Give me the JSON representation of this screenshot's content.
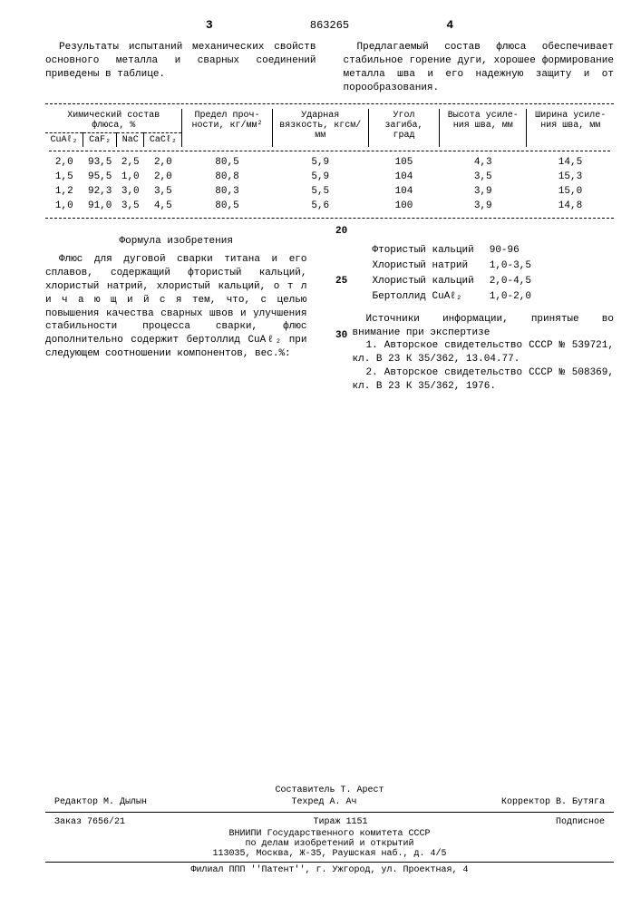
{
  "header": {
    "col_left": "3",
    "doc_number": "863265",
    "col_right": "4"
  },
  "intro_left": "Результаты испытаний механических свойств основного металла и сварных соединений приведены в таблице.",
  "intro_right": "Предлагаемый состав флюса обеспечивает стабильное горение дуги, хорошее формирование металла шва и его надежную защиту и от порообразования.",
  "table": {
    "group_header": "Химический состав флюса, %",
    "cols": [
      "CuAℓ₂",
      "CaF₂",
      "NaC",
      "CaCℓ₂"
    ],
    "other_headers": [
      "Предел проч- ности, кг/мм²",
      "Ударная вязкость, кгсм/мм",
      "Угол загиба, град",
      "Высота усиле- ния шва, мм",
      "Ширина усиле- ния шва, мм"
    ],
    "rows": [
      [
        "2,0",
        "93,5",
        "2,5",
        "2,0",
        "80,5",
        "5,9",
        "105",
        "4,3",
        "14,5"
      ],
      [
        "1,5",
        "95,5",
        "1,0",
        "2,0",
        "80,8",
        "5,9",
        "104",
        "3,5",
        "15,3"
      ],
      [
        "1,2",
        "92,3",
        "3,0",
        "3,5",
        "80,3",
        "5,5",
        "104",
        "3,9",
        "15,0"
      ],
      [
        "1,0",
        "91,0",
        "3,5",
        "4,5",
        "80,5",
        "5,6",
        "100",
        "3,9",
        "14,8"
      ]
    ]
  },
  "line_numbers": [
    "20",
    "25",
    "30"
  ],
  "formula_title": "Формула изобретения",
  "formula_body": "Флюс для дуговой сварки титана и его сплавов, содержащий фтористый кальций, хлористый натрий, хлористый кальций, о т л и ч а ю щ и й с я тем, что, с целью повышения качества сварных швов и улучшения стабильности процесса сварки, флюс дополнительно содержит бертоллид CuAℓ₂ при следующем соотношении компонентов, вес.%:",
  "components": [
    [
      "Фтористый кальций",
      "90-96"
    ],
    [
      "Хлористый натрий",
      "1,0-3,5"
    ],
    [
      "Хлористый кальций",
      "2,0-4,5"
    ],
    [
      "Бертоллид CuAℓ₂",
      "1,0-2,0"
    ]
  ],
  "sources_title": "Источники информации, принятые во внимание при экспертизе",
  "sources": [
    "1. Авторское свидетельство СССР № 539721, кл. В 23 К 35/362, 13.04.77.",
    "2. Авторское свидетельство СССР № 508369, кл. В 23 К 35/362, 1976."
  ],
  "footer": {
    "row1": {
      "compiler": "Составитель Т. Арест"
    },
    "row2": {
      "editor": "Редактор М. Дылын",
      "tech": "Техред  А. Ач",
      "corrector": "Корректор В. Бутяга"
    },
    "row3": {
      "order": "Заказ 7656/21",
      "tirazh": "Тираж 1151",
      "sub": "Подписное"
    },
    "org1": "ВНИИПИ Государственного комитета СССР",
    "org2": "по делам изобретений и открытий",
    "addr": "113035, Москва, Ж-35, Раушская наб., д. 4/5",
    "branch": "Филиал ППП ''Патент'', г. Ужгород, ул. Проектная, 4"
  }
}
